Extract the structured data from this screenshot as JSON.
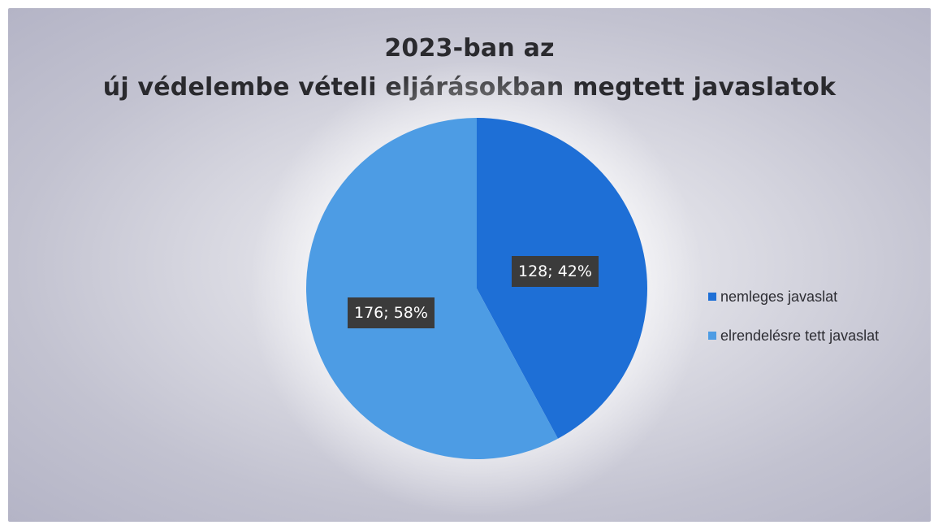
{
  "chart_data": {
    "type": "pie",
    "title_lines": [
      "2023-ban az",
      "új védelembe vételi eljárásokban megtett javaslatok"
    ],
    "categories": [
      "nemleges javaslat",
      "elrendelésre tett javaslat"
    ],
    "values": [
      128,
      176
    ],
    "percents": [
      42,
      58
    ],
    "data_labels": [
      "128; 42%",
      "176; 58%"
    ],
    "colors": [
      "#1e6fd6",
      "#4d9ce4"
    ],
    "legend_position": "right"
  }
}
